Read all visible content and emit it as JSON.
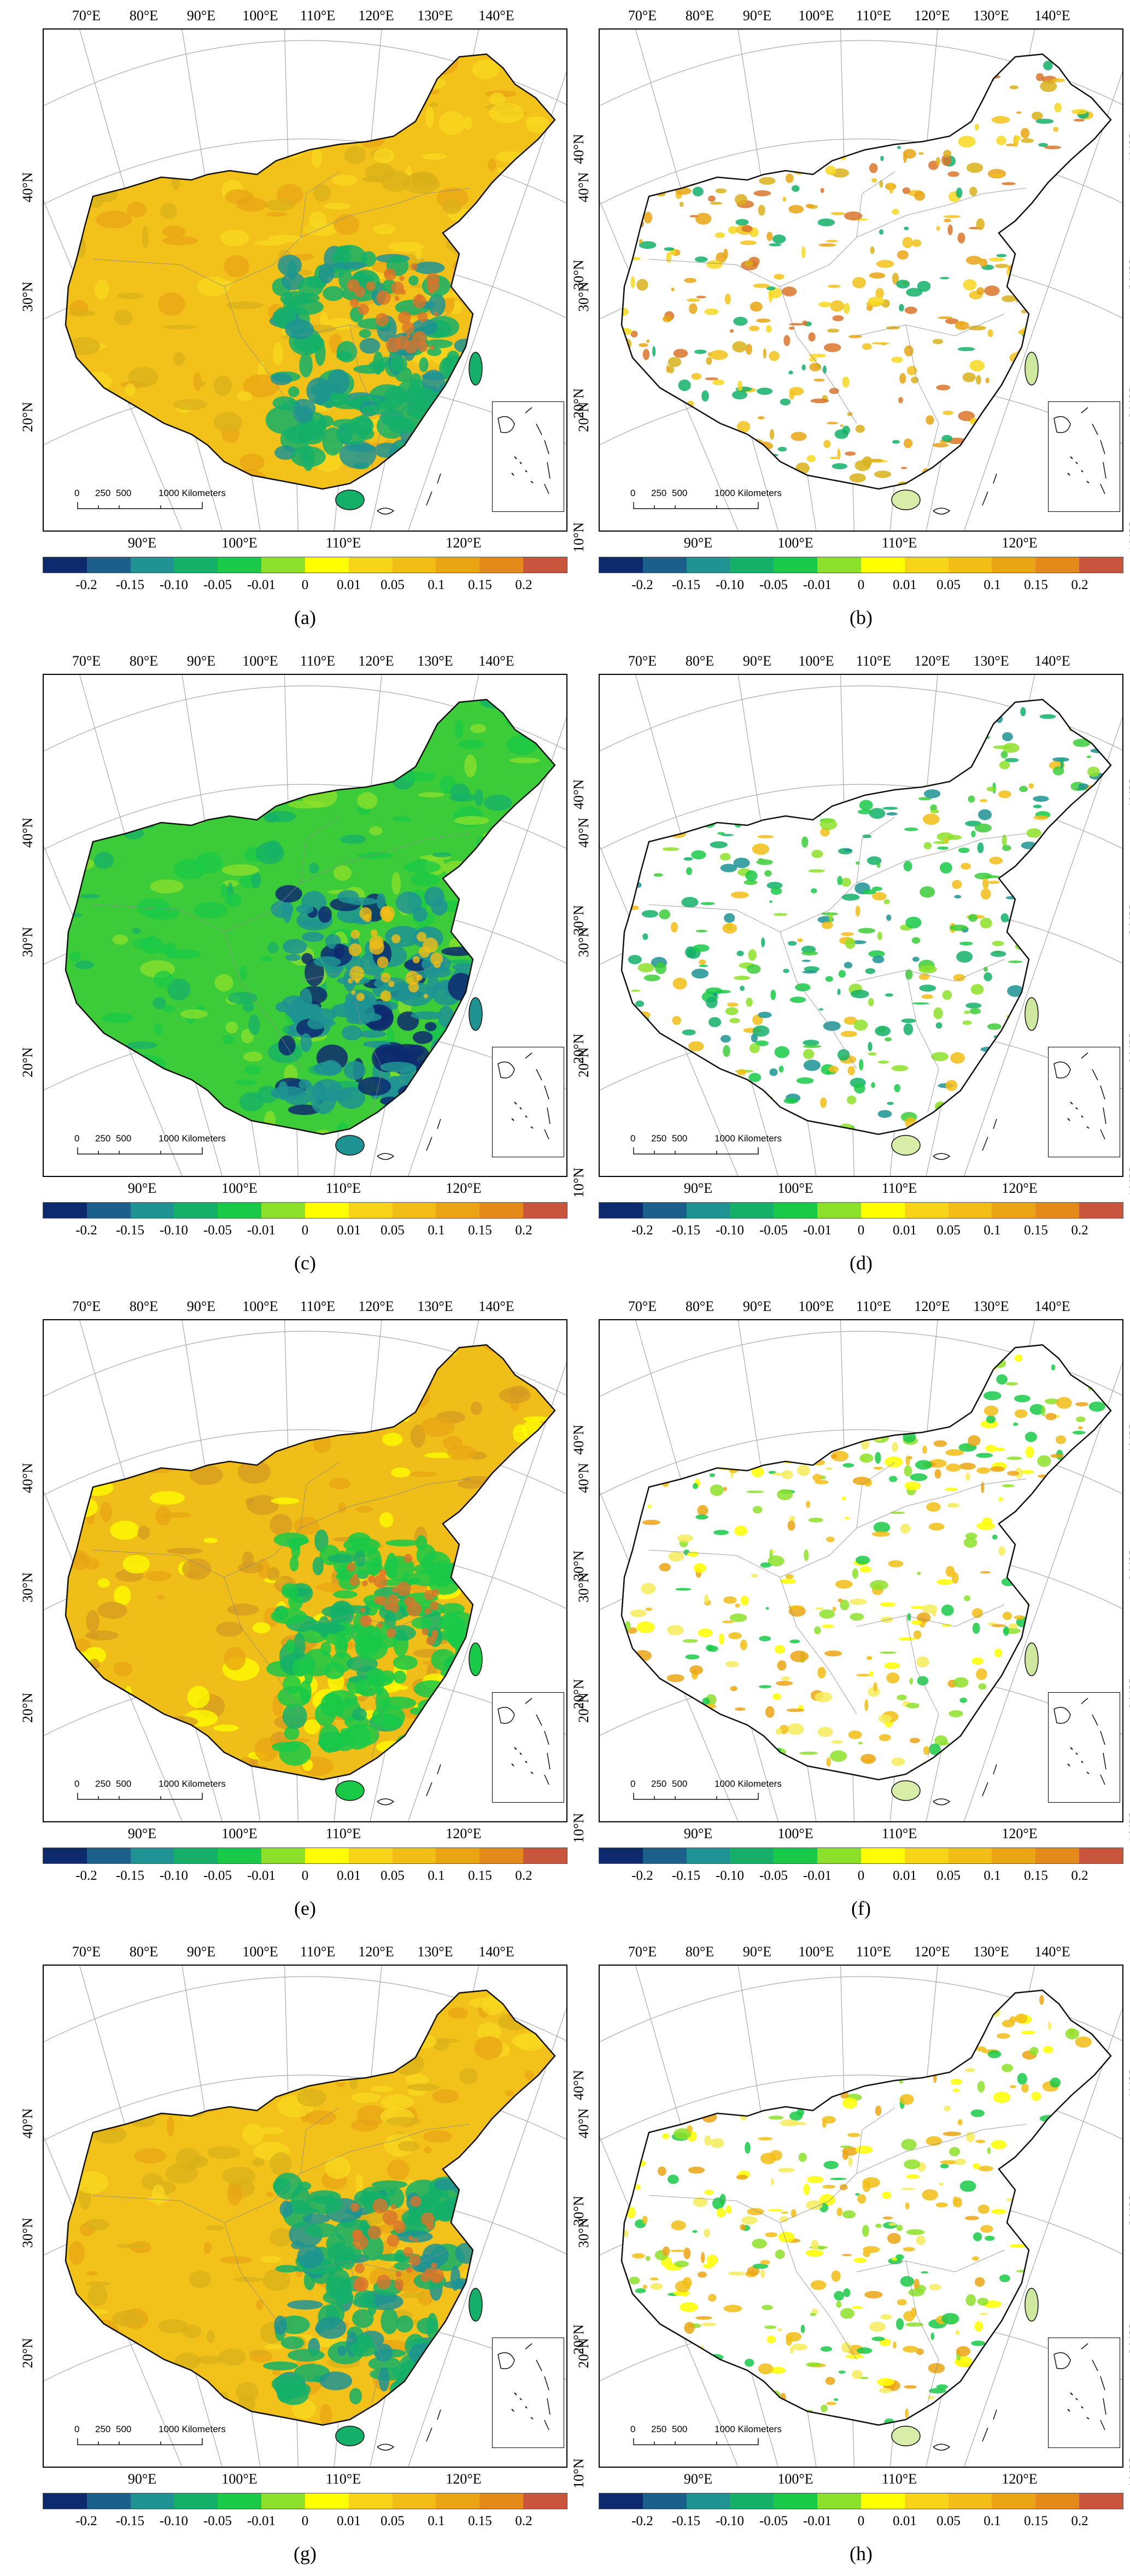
{
  "panels": [
    {
      "id": "a",
      "caption": "(a)",
      "masked": false,
      "theme": "yellow"
    },
    {
      "id": "b",
      "caption": "(b)",
      "masked": true,
      "theme": "yellow"
    },
    {
      "id": "c",
      "caption": "(c)",
      "masked": false,
      "theme": "green"
    },
    {
      "id": "d",
      "caption": "(d)",
      "masked": true,
      "theme": "green"
    },
    {
      "id": "e",
      "caption": "(e)",
      "masked": false,
      "theme": "mixed"
    },
    {
      "id": "f",
      "caption": "(f)",
      "masked": true,
      "theme": "lightyellow"
    },
    {
      "id": "g",
      "caption": "(g)",
      "masked": false,
      "theme": "yellow"
    },
    {
      "id": "h",
      "caption": "(h)",
      "masked": true,
      "theme": "lightyellow"
    }
  ],
  "lon_top_labels": [
    "70°E",
    "80°E",
    "90°E",
    "100°E",
    "110°E",
    "120°E",
    "130°E",
    "140°E"
  ],
  "lon_bottom_labels": [
    "90°E",
    "100°E",
    "110°E",
    "120°E"
  ],
  "lat_left_labels": [
    "40°N",
    "30°N",
    "20°N"
  ],
  "lat_right_labels": [
    "40°N",
    "30°N",
    "20°N",
    "10°N"
  ],
  "scalebar": {
    "ticks": [
      "0",
      "250",
      "500"
    ],
    "label": "1000 Kilometers"
  },
  "legend": {
    "labels": [
      "-0.2",
      "-0.15",
      "-0.10",
      "-0.05",
      "-0.01",
      "0",
      "0.01",
      "0.05",
      "0.1",
      "0.15",
      "0.2"
    ],
    "colors": [
      "#0d2a6e",
      "#1b5f8c",
      "#1f9393",
      "#14b069",
      "#19c948",
      "#8de02a",
      "#ffff00",
      "#f7d418",
      "#f2bd16",
      "#eba414",
      "#e38a1a",
      "#c8553c"
    ]
  }
}
